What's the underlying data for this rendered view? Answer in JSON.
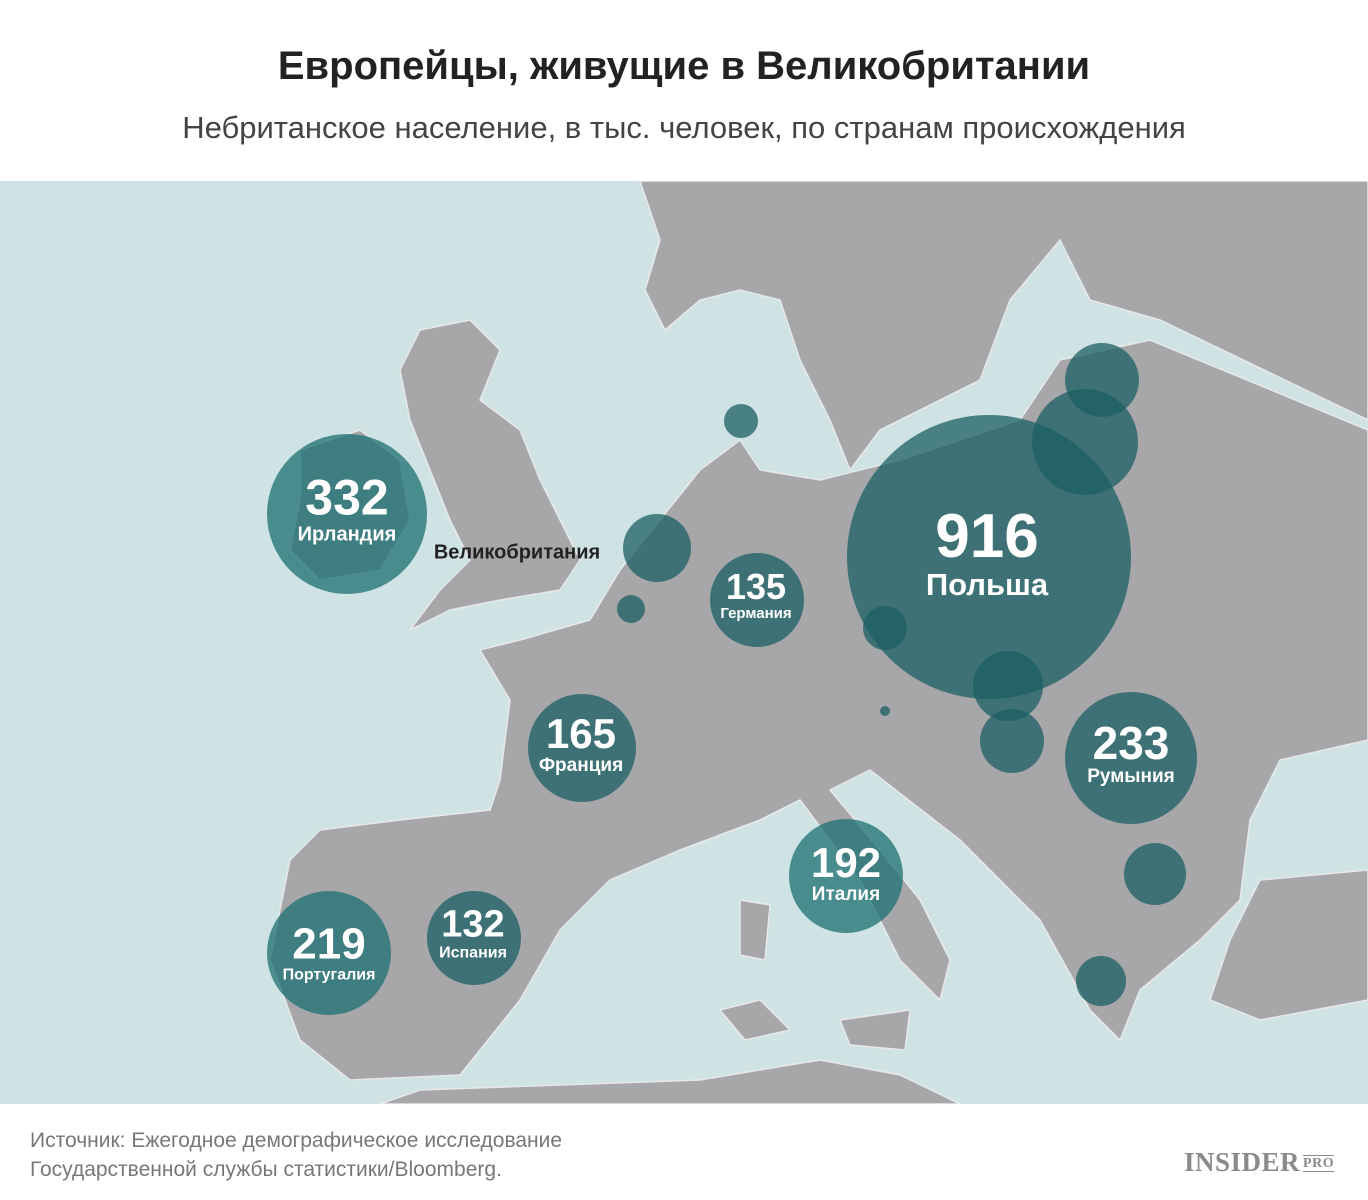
{
  "title": "Европейцы, живущие в Великобритании",
  "subtitle": "Небританское население, в тыс. человек, по странам происхождения",
  "uk_label": "Великобритания",
  "source": [
    "Источник: Ежегодное демографическое исследование",
    "Государственной службы статистики/Bloomberg."
  ],
  "logo": {
    "main": "INSIDER",
    "sup": "PRO"
  },
  "colors": {
    "sea": "#cfe3e4",
    "land": "#a7a7aa",
    "bubble": "#1b5f63",
    "bubble_light": "#3d9a9c"
  },
  "countries": [
    {
      "name": "Ирландия",
      "value": "332"
    },
    {
      "name": "Польша",
      "value": "916"
    },
    {
      "name": "Германия",
      "value": "135"
    },
    {
      "name": "Франция",
      "value": "165"
    },
    {
      "name": "Италия",
      "value": "192"
    },
    {
      "name": "Румыния",
      "value": "233"
    },
    {
      "name": "Испания",
      "value": "132"
    },
    {
      "name": "Португалия",
      "value": "219"
    }
  ]
}
